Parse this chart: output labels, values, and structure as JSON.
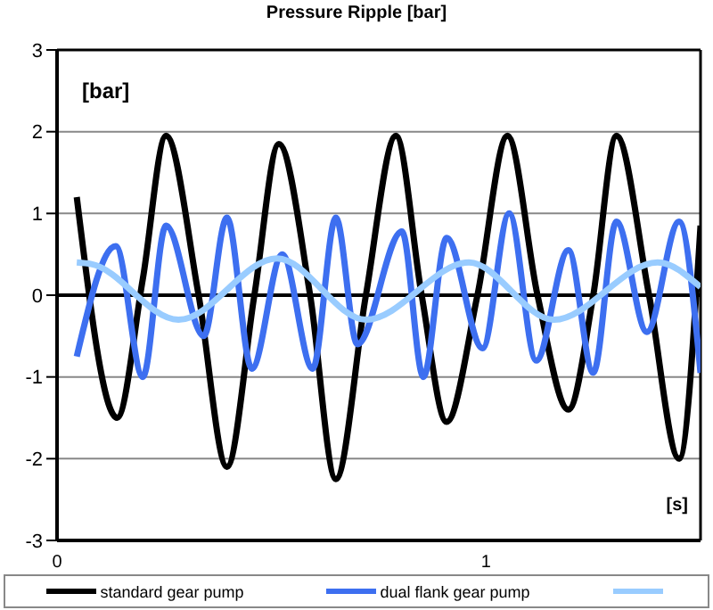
{
  "chart_data": {
    "type": "line",
    "title": "Pressure Ripple [bar]",
    "xlabel": "[s]",
    "ylabel": "[bar]",
    "xlim": [
      0,
      1.5
    ],
    "xticks": [
      0,
      1
    ],
    "ylim": [
      -3,
      3
    ],
    "yticks": [
      -3,
      -2,
      -1,
      0,
      1,
      2,
      3
    ],
    "grid": "y",
    "legend": "bottom",
    "marker": "none",
    "line_style": "solid",
    "series": [
      {
        "name": "standard gear pump",
        "color": "#000000",
        "x": [
          0.046,
          0.14,
          0.2,
          0.254,
          0.33,
          0.396,
          0.46,
          0.517,
          0.59,
          0.65,
          0.72,
          0.79,
          0.85,
          0.908,
          0.98,
          1.05,
          1.12,
          1.192,
          1.25,
          1.304,
          1.38,
          1.45,
          1.5
        ],
        "values": [
          1.2,
          -1.5,
          0.2,
          1.95,
          0,
          -2.1,
          0,
          1.85,
          0,
          -2.25,
          0,
          1.95,
          0,
          -1.55,
          0,
          1.95,
          0,
          -1.4,
          0,
          1.95,
          0,
          -2.0,
          0.85
        ]
      },
      {
        "name": "dual flank gear pump",
        "color": "#3d6ff0",
        "x": [
          0.046,
          0.137,
          0.2,
          0.254,
          0.342,
          0.396,
          0.454,
          0.525,
          0.596,
          0.65,
          0.7,
          0.804,
          0.854,
          0.908,
          0.992,
          1.054,
          1.117,
          1.192,
          1.25,
          1.304,
          1.375,
          1.45,
          1.5
        ],
        "values": [
          -0.75,
          0.6,
          -1.0,
          0.85,
          -0.5,
          0.95,
          -0.9,
          0.5,
          -0.9,
          0.95,
          -0.6,
          0.78,
          -1.0,
          0.7,
          -0.65,
          1.0,
          -0.8,
          0.55,
          -0.95,
          0.9,
          -0.45,
          0.9,
          -0.95
        ]
      },
      {
        "color": "#99ccff",
        "x": [
          0.046,
          0.08,
          0.283,
          0.513,
          0.72,
          0.96,
          1.158,
          1.4,
          1.5
        ],
        "values": [
          0.4,
          0.38,
          -0.3,
          0.45,
          -0.3,
          0.4,
          -0.3,
          0.4,
          0.1
        ]
      }
    ]
  }
}
